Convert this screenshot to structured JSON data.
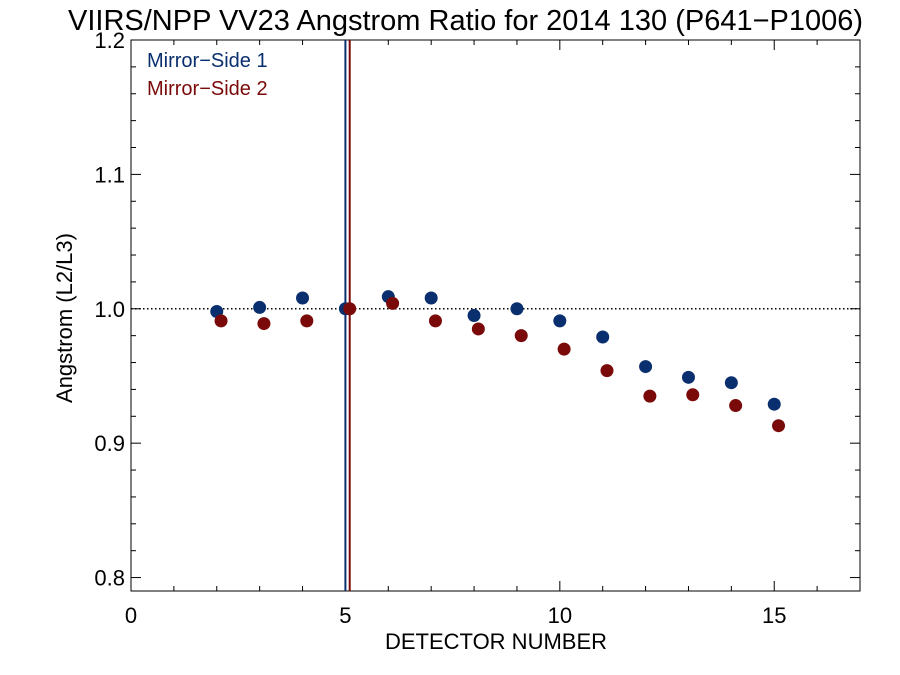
{
  "chart_data": {
    "type": "scatter",
    "title": "VIIRS/NPP VV23 Angstrom Ratio for 2014 130 (P641−P1006)",
    "xlabel": "DETECTOR NUMBER",
    "ylabel": "Angstrom (L2/L3)",
    "xlim": [
      0,
      17
    ],
    "ylim": [
      0.79,
      1.2
    ],
    "xticks": [
      0,
      5,
      10,
      15
    ],
    "xtick_labels": [
      "0",
      "5",
      "10",
      "15"
    ],
    "yticks": [
      0.8,
      0.9,
      1.0,
      1.1,
      1.2
    ],
    "ytick_labels": [
      "0.8",
      "0.9",
      "1.0",
      "1.1",
      "1.2"
    ],
    "reference_line": {
      "y": 1.0,
      "style": "dotted"
    },
    "vertical_lines": [
      {
        "x": 5.0,
        "color": "#0a2f6e"
      },
      {
        "x": 5.1,
        "color": "#7a0a0a"
      }
    ],
    "legend": "top-left",
    "grid": false,
    "series": [
      {
        "name": "Mirror−Side 1",
        "color": "#0a2f6e",
        "points": [
          [
            2,
            0.998
          ],
          [
            3,
            1.001
          ],
          [
            4,
            1.008
          ],
          [
            5,
            1.0
          ],
          [
            6,
            1.009
          ],
          [
            7,
            1.008
          ],
          [
            8,
            0.995
          ],
          [
            9,
            1.0
          ],
          [
            10,
            0.991
          ],
          [
            11,
            0.979
          ],
          [
            12,
            0.957
          ],
          [
            13,
            0.949
          ],
          [
            14,
            0.945
          ],
          [
            15,
            0.929
          ]
        ]
      },
      {
        "name": "Mirror−Side 2",
        "color": "#7a0a0a",
        "points": [
          [
            2.1,
            0.991
          ],
          [
            3.1,
            0.989
          ],
          [
            4.1,
            0.991
          ],
          [
            5.1,
            1.0
          ],
          [
            6.1,
            1.004
          ],
          [
            7.1,
            0.991
          ],
          [
            8.1,
            0.985
          ],
          [
            9.1,
            0.98
          ],
          [
            10.1,
            0.97
          ],
          [
            11.1,
            0.954
          ],
          [
            12.1,
            0.935
          ],
          [
            13.1,
            0.936
          ],
          [
            14.1,
            0.928
          ],
          [
            15.1,
            0.913
          ]
        ]
      }
    ]
  }
}
